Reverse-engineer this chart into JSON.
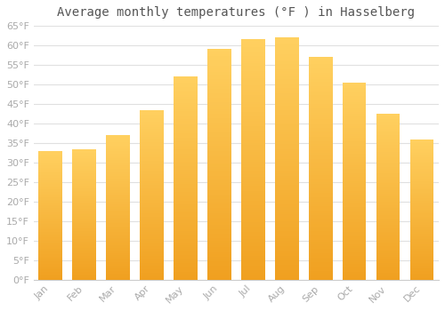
{
  "title": "Average monthly temperatures (°F ) in Hasselberg",
  "months": [
    "Jan",
    "Feb",
    "Mar",
    "Apr",
    "May",
    "Jun",
    "Jul",
    "Aug",
    "Sep",
    "Oct",
    "Nov",
    "Dec"
  ],
  "values": [
    33,
    33.5,
    37,
    43.5,
    52,
    59,
    61.5,
    62,
    57,
    50.5,
    42.5,
    36
  ],
  "bar_color_bottom": "#F0A020",
  "bar_color_top": "#FFD060",
  "ylim": [
    0,
    65
  ],
  "yticks": [
    0,
    5,
    10,
    15,
    20,
    25,
    30,
    35,
    40,
    45,
    50,
    55,
    60,
    65
  ],
  "background_color": "#ffffff",
  "grid_color": "#e0e0e0",
  "title_fontsize": 10,
  "tick_fontsize": 8,
  "tick_color": "#aaaaaa",
  "title_color": "#555555"
}
